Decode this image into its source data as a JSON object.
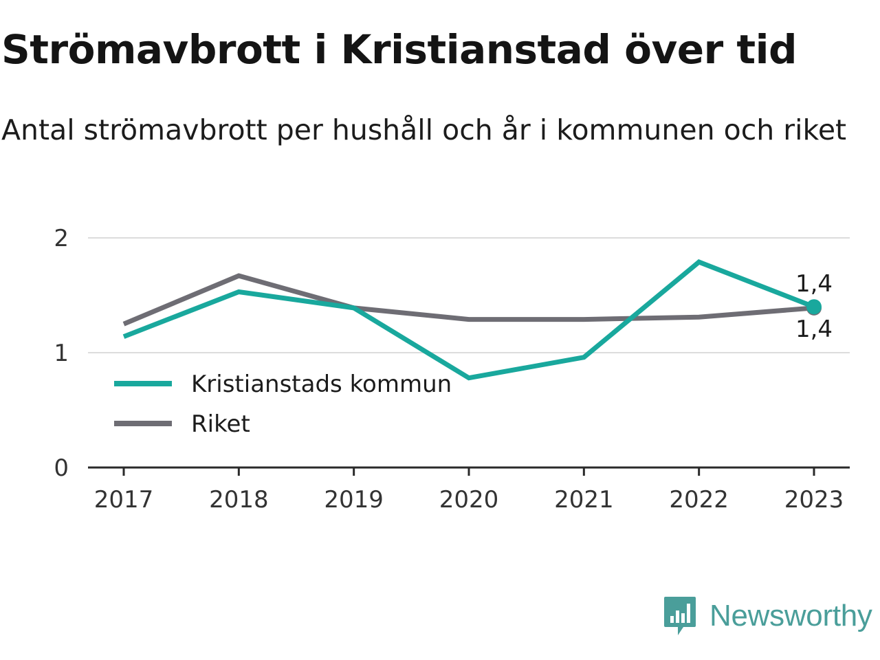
{
  "header": {
    "title": "Strömavbrott i Kristianstad över tid",
    "subtitle": "Antal strömavbrott per hushåll och år i kommunen och riket"
  },
  "chart_data": {
    "type": "line",
    "title": "Strömavbrott i Kristianstad över tid",
    "subtitle": "Antal strömavbrott per hushåll och år i kommunen och riket",
    "xlabel": "",
    "ylabel": "",
    "x": [
      "2017",
      "2018",
      "2019",
      "2020",
      "2021",
      "2022",
      "2023"
    ],
    "ylim": [
      0,
      2
    ],
    "yticks": [
      0,
      1,
      2
    ],
    "grid": true,
    "legend_placement": "bottom-left",
    "series": [
      {
        "name": "Kristianstads kommun",
        "color": "#19a89d",
        "values": [
          1.14,
          1.53,
          1.39,
          0.78,
          0.96,
          1.79,
          1.4
        ]
      },
      {
        "name": "Riket",
        "color": "#6e6d74",
        "values": [
          1.25,
          1.67,
          1.39,
          1.29,
          1.29,
          1.31,
          1.39
        ]
      }
    ],
    "annotations": [
      {
        "series": "Kristianstads kommun",
        "x": "2023",
        "label": "1,4"
      },
      {
        "series": "Riket",
        "x": "2023",
        "label": "1,4"
      }
    ]
  },
  "branding": {
    "logo_text": "Newsworthy",
    "logo_color": "#4a9e9a",
    "logo_icon": "bar-chart-speech-bubble-icon"
  }
}
